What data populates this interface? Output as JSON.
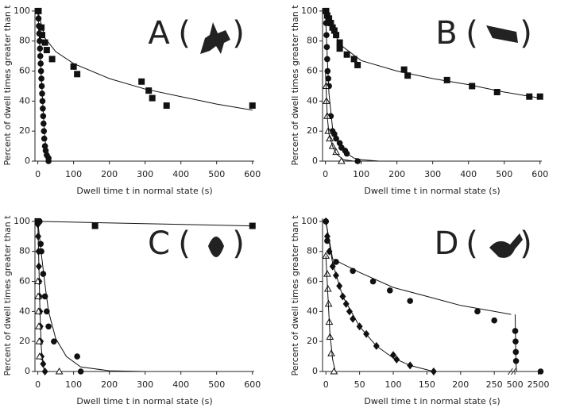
{
  "chart_data": [
    {
      "type": "scatter",
      "label": "A",
      "bracket_open": "(",
      "bracket_close": ")",
      "ylabel": "Percent of dwell times greater than t",
      "xlabel": "Dwell time t in normal state (s)",
      "xlim": [
        -8,
        605
      ],
      "ylim": [
        0,
        101
      ],
      "xticks": [
        0,
        100,
        200,
        300,
        400,
        500,
        600
      ],
      "yticks": [
        0,
        20,
        40,
        60,
        80,
        100
      ],
      "series": [
        {
          "marker": "square",
          "color": "#111",
          "x": [
            2,
            10,
            12,
            20,
            25,
            40,
            100,
            110,
            290,
            310,
            320,
            360,
            600
          ],
          "values": [
            100,
            89,
            84,
            79,
            74,
            68,
            63,
            58,
            53,
            47,
            42,
            37,
            37
          ]
        },
        {
          "marker": "circle",
          "color": "#111",
          "x": [
            1,
            2,
            3,
            4,
            5,
            6,
            7,
            8,
            9,
            10,
            11,
            12,
            13,
            14,
            15,
            16,
            17,
            18,
            20,
            22,
            25,
            30,
            30
          ],
          "values": [
            100,
            95,
            90,
            85,
            80,
            75,
            70,
            65,
            60,
            55,
            50,
            45,
            40,
            35,
            30,
            25,
            20,
            15,
            10,
            7,
            4,
            2,
            0
          ]
        },
        {
          "marker": "line",
          "color": "#111",
          "x": [
            0,
            20,
            50,
            100,
            200,
            300,
            400,
            500,
            600
          ],
          "values": [
            100,
            82,
            73,
            65,
            55,
            48,
            43,
            38,
            34
          ]
        },
        {
          "marker": "line",
          "color": "#111",
          "x": [
            0,
            5,
            10,
            15,
            20,
            25,
            30
          ],
          "values": [
            100,
            78,
            55,
            33,
            15,
            5,
            0
          ]
        }
      ]
    },
    {
      "type": "scatter",
      "label": "B",
      "bracket_open": "(",
      "bracket_close": ")",
      "ylabel": "Percent of dwell times greater than t",
      "xlabel": "Dwell time t in normal state (s)",
      "xlim": [
        -8,
        605
      ],
      "ylim": [
        0,
        101
      ],
      "xticks": [
        0,
        100,
        200,
        300,
        400,
        500,
        600
      ],
      "yticks": [
        0,
        20,
        40,
        60,
        80,
        100
      ],
      "series": [
        {
          "marker": "square",
          "color": "#111",
          "x": [
            2,
            5,
            10,
            15,
            20,
            25,
            30,
            40,
            40,
            60,
            80,
            90,
            220,
            230,
            340,
            410,
            480,
            570,
            600
          ],
          "values": [
            100,
            97,
            95,
            92,
            89,
            87,
            84,
            79,
            75,
            71,
            68,
            64,
            61,
            57,
            54,
            50,
            46,
            43,
            43
          ]
        },
        {
          "marker": "circle",
          "color": "#111",
          "x": [
            1,
            2,
            3,
            4,
            5,
            6,
            8,
            10,
            15,
            20,
            25,
            30,
            40,
            45,
            55,
            60,
            90
          ],
          "values": [
            100,
            92,
            84,
            76,
            68,
            60,
            55,
            50,
            30,
            20,
            18,
            15,
            12,
            9,
            7,
            5,
            0
          ]
        },
        {
          "marker": "triangle",
          "color": "#111",
          "x": [
            2,
            3,
            5,
            8,
            12,
            20,
            30,
            45
          ],
          "values": [
            50,
            40,
            30,
            20,
            15,
            10,
            6,
            0
          ]
        },
        {
          "marker": "line",
          "color": "#111",
          "x": [
            0,
            20,
            50,
            100,
            200,
            300,
            400,
            500,
            600
          ],
          "values": [
            100,
            86,
            76,
            67,
            60,
            55,
            51,
            46,
            42
          ]
        },
        {
          "marker": "line",
          "color": "#111",
          "x": [
            0,
            5,
            10,
            20,
            40,
            60,
            80,
            100,
            150,
            200
          ],
          "values": [
            100,
            70,
            45,
            22,
            10,
            5,
            2,
            1,
            0,
            0
          ]
        },
        {
          "marker": "line",
          "color": "#111",
          "x": [
            0,
            5,
            10,
            20,
            30,
            50,
            80
          ],
          "values": [
            60,
            30,
            18,
            10,
            5,
            1,
            0
          ]
        }
      ]
    },
    {
      "type": "scatter",
      "label": "C",
      "bracket_open": "(",
      "bracket_close": ")",
      "ylabel": "Percent of dwell times greater than t",
      "xlabel": "Dwell time t in normal state (s)",
      "xlim": [
        -8,
        605
      ],
      "ylim": [
        0,
        101
      ],
      "xticks": [
        0,
        100,
        200,
        300,
        400,
        500,
        600
      ],
      "yticks": [
        0,
        20,
        40,
        60,
        80,
        100
      ],
      "series": [
        {
          "marker": "square",
          "color": "#111",
          "x": [
            0,
            160,
            600
          ],
          "values": [
            100,
            97,
            97
          ]
        },
        {
          "marker": "circle",
          "color": "#111",
          "x": [
            5,
            8,
            10,
            15,
            20,
            25,
            30,
            45,
            110,
            120
          ],
          "values": [
            100,
            85,
            80,
            65,
            50,
            40,
            30,
            20,
            10,
            0
          ]
        },
        {
          "marker": "diamond",
          "color": "#111",
          "x": [
            0,
            1,
            2,
            3,
            4,
            5,
            6,
            7,
            8,
            10,
            15,
            20
          ],
          "values": [
            98,
            90,
            80,
            70,
            60,
            50,
            40,
            30,
            20,
            10,
            5,
            0
          ]
        },
        {
          "marker": "triangle",
          "color": "#111",
          "x": [
            0,
            1,
            2,
            3,
            4,
            5,
            60
          ],
          "values": [
            60,
            50,
            40,
            30,
            20,
            10,
            0
          ]
        },
        {
          "marker": "line",
          "color": "#111",
          "x": [
            0,
            600
          ],
          "values": [
            100,
            97
          ]
        },
        {
          "marker": "line",
          "color": "#111",
          "x": [
            0,
            10,
            20,
            30,
            50,
            80,
            120,
            200,
            300
          ],
          "values": [
            100,
            78,
            58,
            40,
            22,
            10,
            3,
            0.5,
            0
          ]
        },
        {
          "marker": "line",
          "color": "#111",
          "x": [
            0,
            3,
            6,
            10,
            15,
            20
          ],
          "values": [
            100,
            70,
            40,
            15,
            3,
            0
          ]
        }
      ]
    },
    {
      "type": "scatter",
      "label": "D",
      "bracket_open": "(",
      "bracket_close": ")",
      "ylabel": "Percent of dwell times greater than t",
      "xlabel": "Dwell time t in normal state (s)",
      "xlim": [
        -5,
        2800
      ],
      "xbreak": [
        275,
        450
      ],
      "ylim": [
        0,
        101
      ],
      "xticks": [
        0,
        50,
        100,
        150,
        200,
        250,
        500,
        2500
      ],
      "yticks": [
        0,
        20,
        40,
        60,
        80,
        100
      ],
      "series": [
        {
          "marker": "circle",
          "color": "#111",
          "x": [
            0,
            2,
            15,
            40,
            70,
            95,
            125,
            225,
            250,
            530,
            560,
            580,
            600,
            2700
          ],
          "values": [
            100,
            87,
            73,
            67,
            60,
            54,
            47,
            40,
            34,
            27,
            20,
            13,
            7,
            0
          ]
        },
        {
          "marker": "diamond",
          "color": "#111",
          "x": [
            0,
            2,
            5,
            10,
            15,
            20,
            25,
            30,
            35,
            40,
            50,
            60,
            75,
            100,
            105,
            125,
            160
          ],
          "values": [
            100,
            90,
            80,
            70,
            64,
            57,
            50,
            45,
            40,
            35,
            30,
            25,
            17,
            11,
            8,
            4,
            0
          ]
        },
        {
          "marker": "triangle",
          "color": "#111",
          "x": [
            0,
            2,
            3,
            4,
            5,
            6,
            8,
            12
          ],
          "values": [
            77,
            65,
            55,
            45,
            33,
            23,
            12,
            0
          ]
        },
        {
          "marker": "line",
          "color": "#111",
          "x": [
            0,
            10,
            50,
            100,
            150,
            200,
            275
          ],
          "values": [
            100,
            75,
            66,
            56,
            50,
            44,
            38
          ]
        },
        {
          "marker": "line",
          "color": "#111",
          "x": [
            520,
            540,
            560,
            580,
            600,
            650
          ],
          "values": [
            38,
            30,
            20,
            10,
            4,
            0
          ]
        },
        {
          "marker": "line",
          "color": "#111",
          "x": [
            0,
            10,
            25,
            50,
            75,
            100,
            125,
            160
          ],
          "values": [
            100,
            72,
            50,
            30,
            17,
            9,
            4,
            0
          ]
        },
        {
          "marker": "line",
          "color": "#111",
          "x": [
            0,
            3,
            6,
            10,
            14
          ],
          "values": [
            77,
            50,
            25,
            8,
            0
          ]
        }
      ]
    }
  ]
}
